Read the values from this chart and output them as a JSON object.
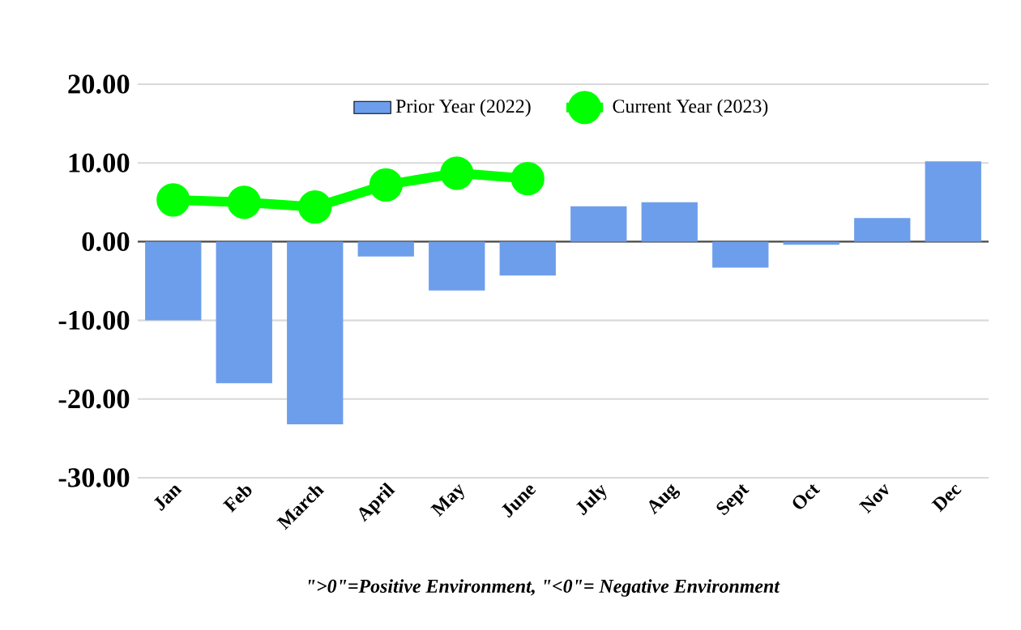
{
  "chart_data": {
    "type": "bar",
    "categories": [
      "Jan",
      "Feb",
      "March",
      "April",
      "May",
      "June",
      "July",
      "Aug",
      "Sept",
      "Oct",
      "Nov",
      "Dec"
    ],
    "series": [
      {
        "name": "Prior Year (2022)",
        "color": "#6d9eeb",
        "values": [
          -10.0,
          -18.0,
          -23.2,
          -1.9,
          -6.2,
          -4.3,
          4.5,
          5.0,
          -3.3,
          -0.4,
          3.0,
          10.2
        ]
      },
      {
        "name": "Current Year (2023)",
        "type": "line",
        "color": "#00ff00",
        "marker": "circle",
        "values": [
          5.3,
          5.0,
          4.4,
          7.2,
          8.7,
          8.0,
          null,
          null,
          null,
          null,
          null,
          null
        ]
      }
    ],
    "ylim": [
      -30,
      20
    ],
    "yticks": [
      {
        "value": -30,
        "label": "-30.00"
      },
      {
        "value": -20,
        "label": "-20.00"
      },
      {
        "value": -10,
        "label": "-10.00"
      },
      {
        "value": 0,
        "label": "0.00"
      },
      {
        "value": 10,
        "label": "10.00"
      },
      {
        "value": 20,
        "label": "20.00"
      }
    ],
    "grid": "y",
    "legend": "top",
    "annotations": [
      "\">0\"=Positive Environment, \"<0\"= Negative Environment"
    ]
  }
}
